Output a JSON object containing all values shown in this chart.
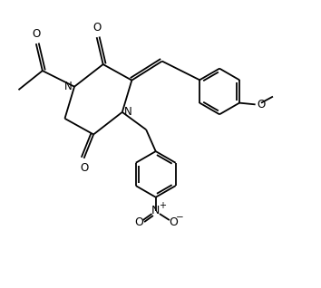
{
  "bg_color": "#ffffff",
  "line_color": "#000000",
  "line_width": 1.3,
  "font_size": 8.5,
  "xlim": [
    0,
    10
  ],
  "ylim": [
    0,
    9
  ]
}
